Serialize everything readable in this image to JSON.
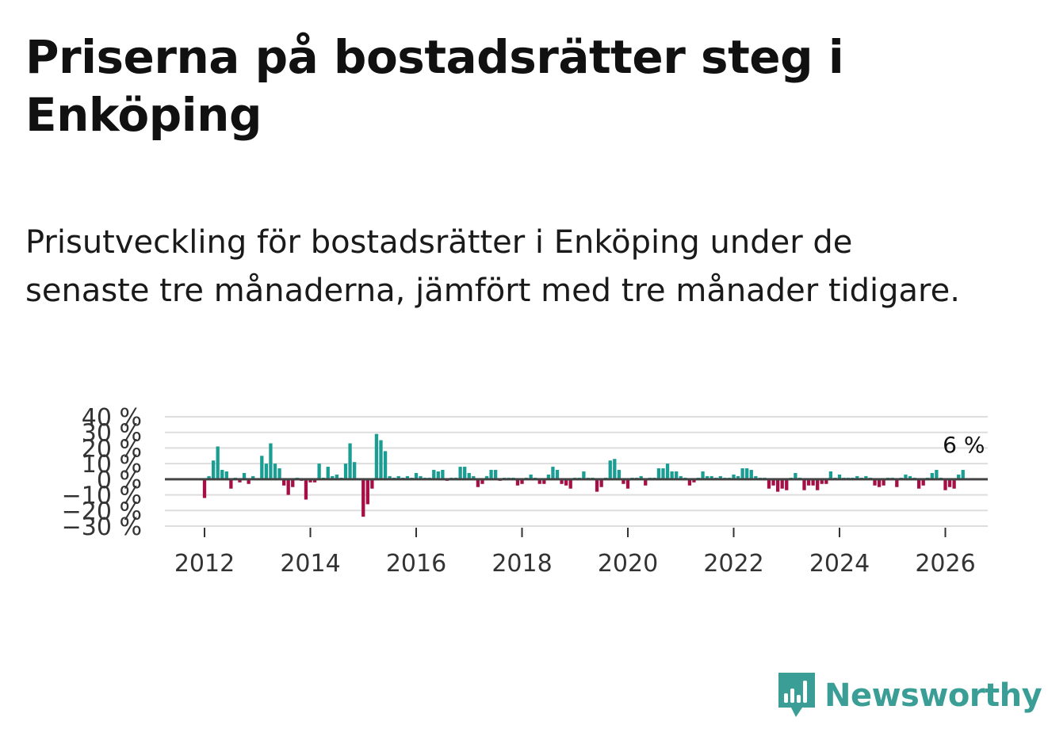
{
  "title": "Priserna på bostadsrätter steg i Enköping",
  "subtitle": "Prisutveckling för bostadsrätter i Enköping under de senaste tre månaderna, jämfört med tre månader tidigare.",
  "brand": {
    "name": "Newsworthy",
    "icon": "newsworthy-logo-icon",
    "color": "#3a9e96"
  },
  "chart_data": {
    "type": "bar",
    "title": "",
    "xlabel": "",
    "ylabel": "",
    "x_start": "2012-01",
    "frequency": "monthly",
    "ylim": [
      -30,
      40
    ],
    "y_ticks": [
      "40 %",
      "30 %",
      "20 %",
      "10 %",
      "0 %",
      "−10 %",
      "−20 %",
      "−30 %"
    ],
    "y_tick_values": [
      40,
      30,
      20,
      10,
      0,
      -10,
      -20,
      -30
    ],
    "x_ticks": [
      "2012",
      "2014",
      "2016",
      "2018",
      "2020",
      "2022",
      "2024",
      "2026"
    ],
    "x_tick_years": [
      2012,
      2014,
      2016,
      2018,
      2020,
      2022,
      2024,
      2026
    ],
    "positive_color": "#1a9e93",
    "negative_color": "#a50f45",
    "end_label": "6 %",
    "end_value": 6,
    "values": [
      -12,
      2,
      12,
      21,
      6,
      5,
      -6,
      1,
      -2,
      4,
      -3,
      2,
      0,
      15,
      10,
      23,
      10,
      7,
      -4,
      -10,
      -5,
      1,
      -1,
      -13,
      -2,
      -2,
      10,
      1,
      8,
      2,
      3,
      1,
      10,
      23,
      11,
      0,
      -24,
      -16,
      -6,
      29,
      25,
      18,
      2,
      1,
      2,
      1,
      2,
      1,
      4,
      2,
      1,
      1,
      6,
      5,
      6,
      -1,
      1,
      1,
      8,
      8,
      4,
      2,
      -5,
      -3,
      2,
      6,
      6,
      -1,
      1,
      1,
      1,
      -4,
      -3,
      1,
      3,
      1,
      -3,
      -3,
      3,
      8,
      6,
      -3,
      -4,
      -6,
      1,
      1,
      5,
      1,
      1,
      -8,
      -5,
      1,
      12,
      13,
      6,
      -3,
      -6,
      1,
      1,
      2,
      -4,
      1,
      1,
      7,
      7,
      10,
      5,
      5,
      2,
      1,
      -4,
      -2,
      1,
      5,
      2,
      2,
      1,
      2,
      1,
      1,
      3,
      2,
      7,
      7,
      6,
      2,
      1,
      1,
      -6,
      -4,
      -8,
      -6,
      -7,
      1,
      4,
      1,
      -7,
      -4,
      -4,
      -7,
      -3,
      -3,
      5,
      1,
      3,
      1,
      1,
      1,
      2,
      1,
      2,
      1,
      -4,
      -5,
      -4,
      1,
      1,
      -5,
      1,
      3,
      2,
      1,
      -6,
      -4,
      1,
      4,
      6,
      1,
      -7,
      -5,
      -6,
      3,
      6
    ]
  }
}
